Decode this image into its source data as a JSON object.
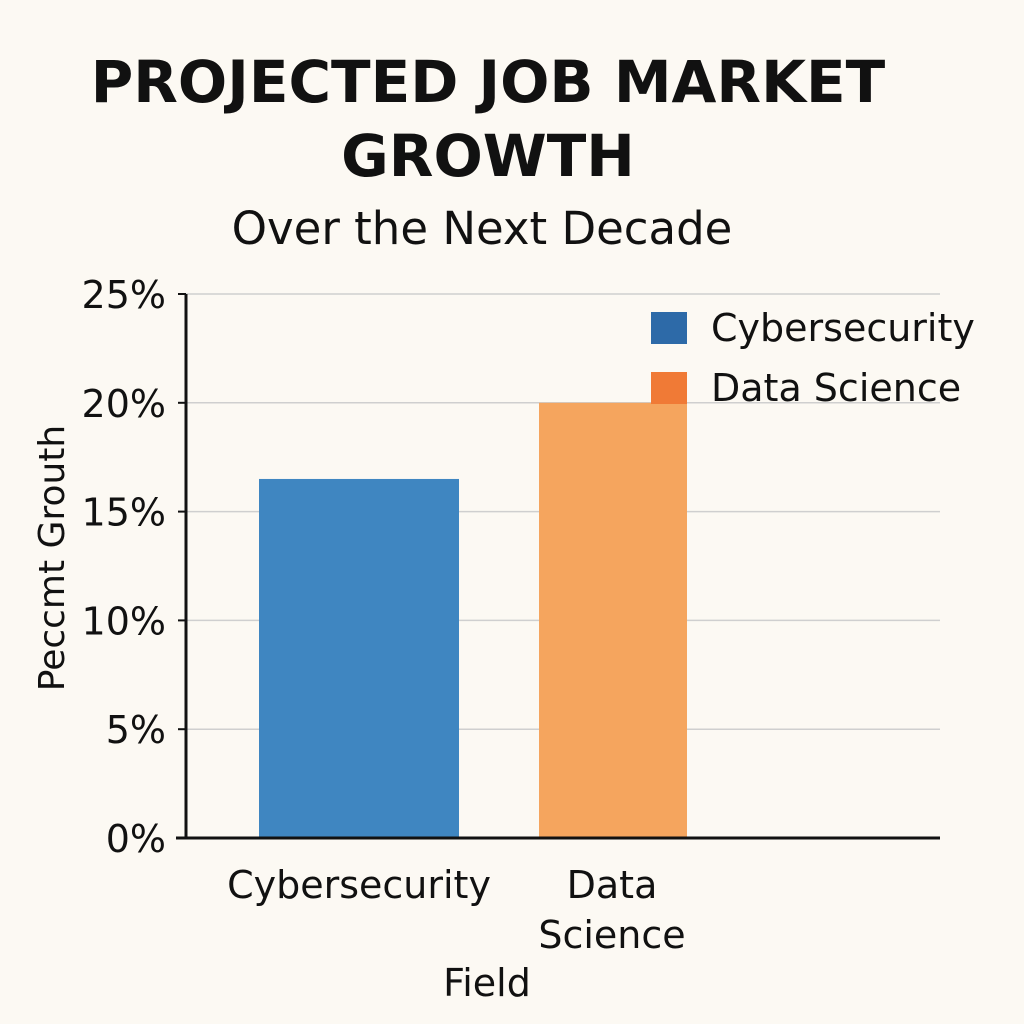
{
  "chart_data": {
    "type": "bar",
    "title_lines": [
      "PROJECTED JOB MARKET",
      "GROWTH"
    ],
    "subtitle": "Over the Next Decade",
    "xlabel": "Field",
    "ylabel": "Peccmt Grouth",
    "categories": [
      {
        "label_lines": [
          "Cybersecurity"
        ],
        "value": 16.5,
        "color": "#3f86c1"
      },
      {
        "label_lines": [
          "Data",
          "Science"
        ],
        "value": 20,
        "color": "#f5a55e"
      }
    ],
    "ylim": [
      0,
      25
    ],
    "yticks": [
      {
        "value": 0,
        "label": "0%"
      },
      {
        "value": 5,
        "label": "5%"
      },
      {
        "value": 10,
        "label": "10%"
      },
      {
        "value": 15,
        "label": "15%"
      },
      {
        "value": 20,
        "label": "20%"
      },
      {
        "value": 25,
        "label": "25%"
      }
    ],
    "legend": {
      "position": "top-right",
      "items": [
        {
          "label": "Cybersecurity",
          "color": "#2d6aa8"
        },
        {
          "label": "Data Science",
          "color": "#f07a36"
        }
      ]
    },
    "grid": true,
    "colors": {
      "background": "#fcf9f3",
      "grid": "#cfcfcf",
      "axis": "#111111"
    }
  }
}
